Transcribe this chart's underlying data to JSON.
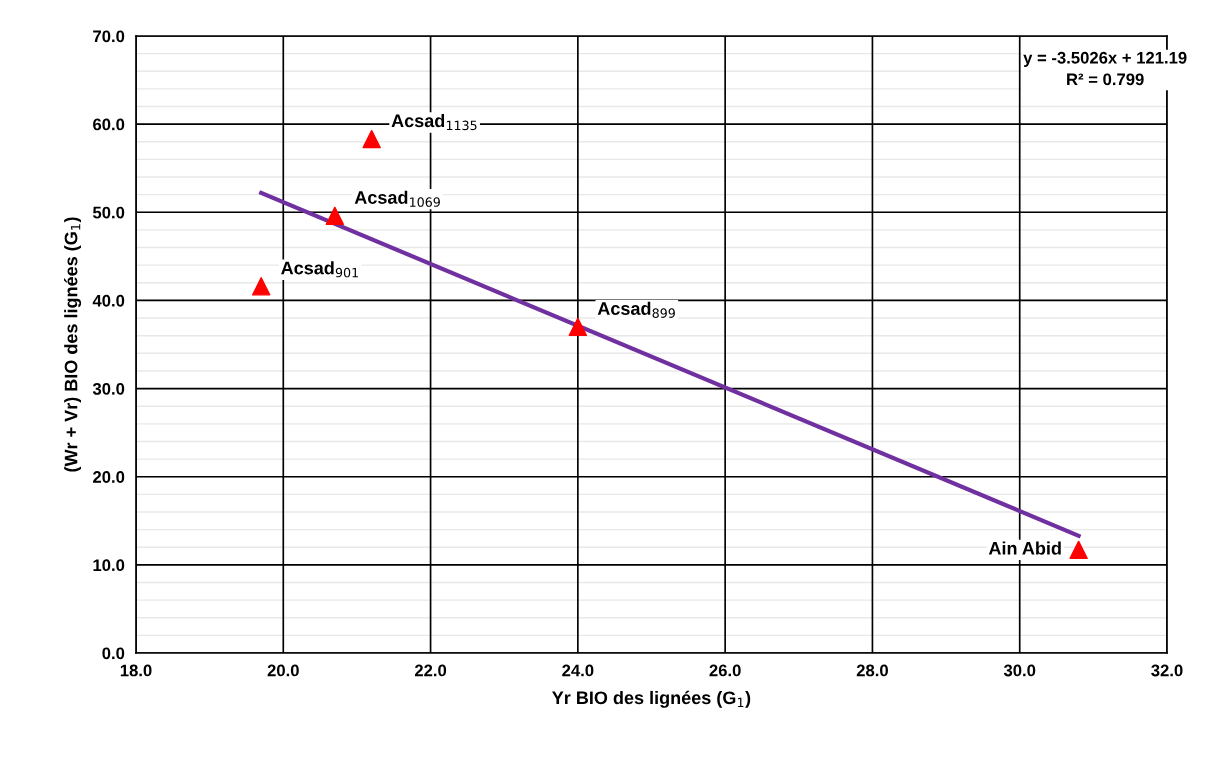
{
  "chart_data": {
    "type": "scatter",
    "xlabel": "Yr BIO des lignées (G$_{1}$)",
    "ylabel": "(Wr + Vr) BIO des lignées (G$_{1}$)",
    "xlim": [
      18.0,
      32.0
    ],
    "xticks": [
      {
        "value": 18,
        "label": "18.0"
      },
      {
        "value": 20,
        "label": "20.0"
      },
      {
        "value": 22,
        "label": "22.0"
      },
      {
        "value": 24,
        "label": "24.0"
      },
      {
        "value": 26,
        "label": "26.0"
      },
      {
        "value": 28,
        "label": "28.0"
      },
      {
        "value": 30,
        "label": "30.0"
      },
      {
        "value": 32,
        "label": "32.0"
      }
    ],
    "ylim": [
      0.0,
      70.0
    ],
    "yticks": [
      {
        "value": 0,
        "label": "0.0"
      },
      {
        "value": 10,
        "label": "10.0"
      },
      {
        "value": 20,
        "label": "20.0"
      },
      {
        "value": 30,
        "label": "30.0"
      },
      {
        "value": 40,
        "label": "40.0"
      },
      {
        "value": 50,
        "label": "50.0"
      },
      {
        "value": 60,
        "label": "60.0"
      },
      {
        "value": 70,
        "label": "70.0"
      }
    ],
    "grid": true,
    "marker": "triangle",
    "series": [
      {
        "color": "#ff0000",
        "x": [
          21.2,
          20.7,
          19.7,
          24.0,
          30.8
        ],
        "values": [
          58.3,
          49.6,
          41.6,
          37.0,
          11.7
        ]
      },
      {
        "type": "line",
        "color": "#7030a0",
        "marker": "none",
        "line_style": "solid",
        "x": [
          19.7,
          30.8
        ],
        "values": [
          52.2,
          13.3
        ]
      }
    ],
    "annotations": [
      {
        "text": "Acsad$_{1135}$",
        "x": 21.2,
        "y": 58.3
      },
      {
        "text": "Acsad$_{1069}$",
        "x": 20.7,
        "y": 49.6
      },
      {
        "text": "Acsad$_{901}$",
        "x": 19.7,
        "y": 41.6
      },
      {
        "text": "Acsad$_{899}$",
        "x": 24.0,
        "y": 37.0
      },
      {
        "text": "Ain Abid",
        "x": 30.8,
        "y": 11.7
      },
      "y = -3.5026x + 121.19\nR² = 0.799"
    ]
  }
}
